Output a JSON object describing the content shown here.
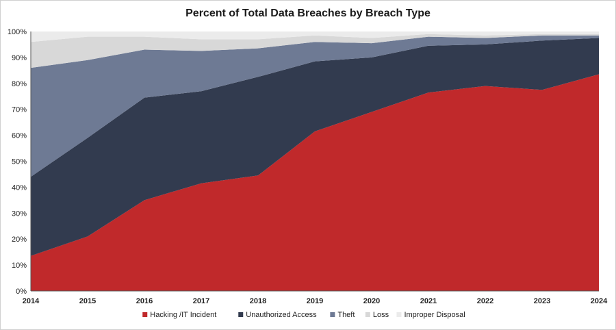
{
  "chart_data": {
    "type": "area",
    "stacked": true,
    "title": "Percent of Total Data Breaches by Breach Type",
    "xlabel": "",
    "ylabel": "",
    "ylim": [
      0,
      100
    ],
    "y_ticks": [
      "0%",
      "10%",
      "20%",
      "30%",
      "40%",
      "50%",
      "60%",
      "70%",
      "80%",
      "90%",
      "100%"
    ],
    "x": [
      "2014",
      "2015",
      "2016",
      "2017",
      "2018",
      "2019",
      "2020",
      "2021",
      "2022",
      "2023",
      "2024"
    ],
    "series": [
      {
        "name": "Hacking /IT Incident",
        "color": "#c0292b",
        "values": [
          13.5,
          21,
          35,
          41.5,
          44.5,
          61.5,
          69,
          76.5,
          79,
          77.5,
          83.5
        ]
      },
      {
        "name": "Unauthorized Access",
        "color": "#323b4f",
        "values": [
          30.5,
          38,
          39.5,
          35.5,
          38,
          27,
          21,
          18,
          16,
          19,
          14
        ]
      },
      {
        "name": "Theft",
        "color": "#6e7a94",
        "values": [
          42,
          30,
          18.5,
          15.5,
          11,
          7.5,
          5.5,
          3.5,
          2.5,
          2,
          1
        ]
      },
      {
        "name": "Loss",
        "color": "#d8d8d8",
        "values": [
          10,
          9,
          5,
          4.5,
          3.5,
          2.5,
          2,
          1,
          1,
          0.5,
          0.5
        ]
      },
      {
        "name": "Improper Disposal",
        "color": "#ebebeb",
        "values": [
          4,
          2,
          2,
          3,
          3,
          1.5,
          2.5,
          1,
          1.5,
          1,
          1
        ]
      }
    ],
    "legend_position": "bottom"
  }
}
